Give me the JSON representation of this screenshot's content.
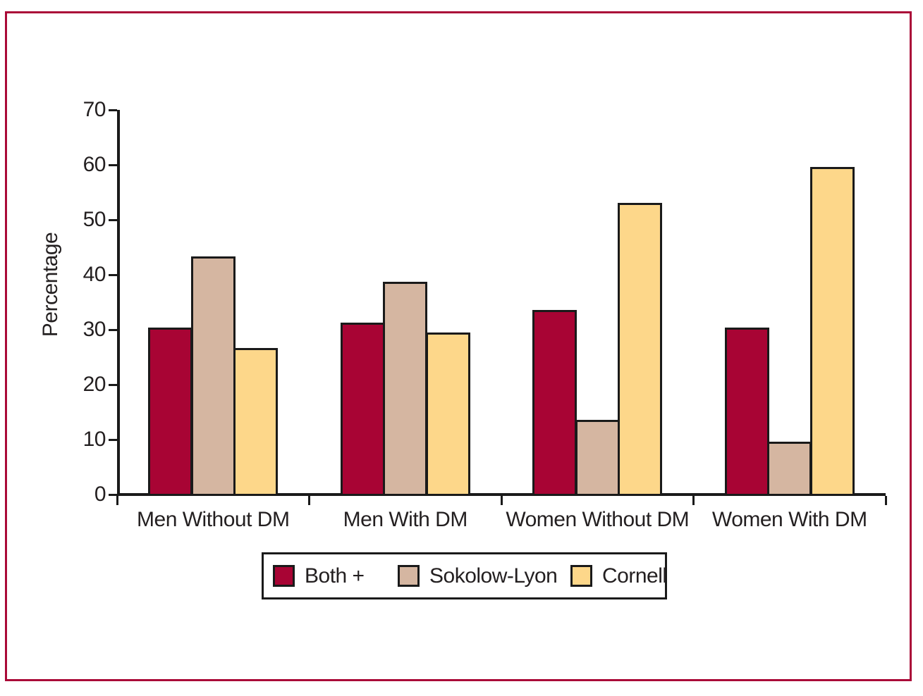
{
  "frame": {
    "border_color": "#AA0A38"
  },
  "axis": {
    "line_color": "#1A1A1A",
    "text_color": "#231F20"
  },
  "chart_data": {
    "type": "bar",
    "title": "",
    "xlabel": "",
    "ylabel": "Percentage",
    "ylim": [
      0,
      70
    ],
    "yticks": [
      0,
      10,
      20,
      30,
      40,
      50,
      60,
      70
    ],
    "grid": false,
    "legend_position": "bottom",
    "categories": [
      "Men Without DM",
      "Men With DM",
      "Women Without DM",
      "Women With DM"
    ],
    "series": [
      {
        "name": "Both +",
        "color": "#A80434",
        "values": [
          30.4,
          31.3,
          33.6,
          30.4
        ]
      },
      {
        "name": "Sokolow-Lyon",
        "color": "#D5B6A1",
        "values": [
          43.3,
          38.7,
          13.6,
          9.6
        ]
      },
      {
        "name": "Cornell",
        "color": "#FDD78A",
        "values": [
          26.7,
          29.5,
          53.1,
          59.6
        ]
      }
    ]
  }
}
